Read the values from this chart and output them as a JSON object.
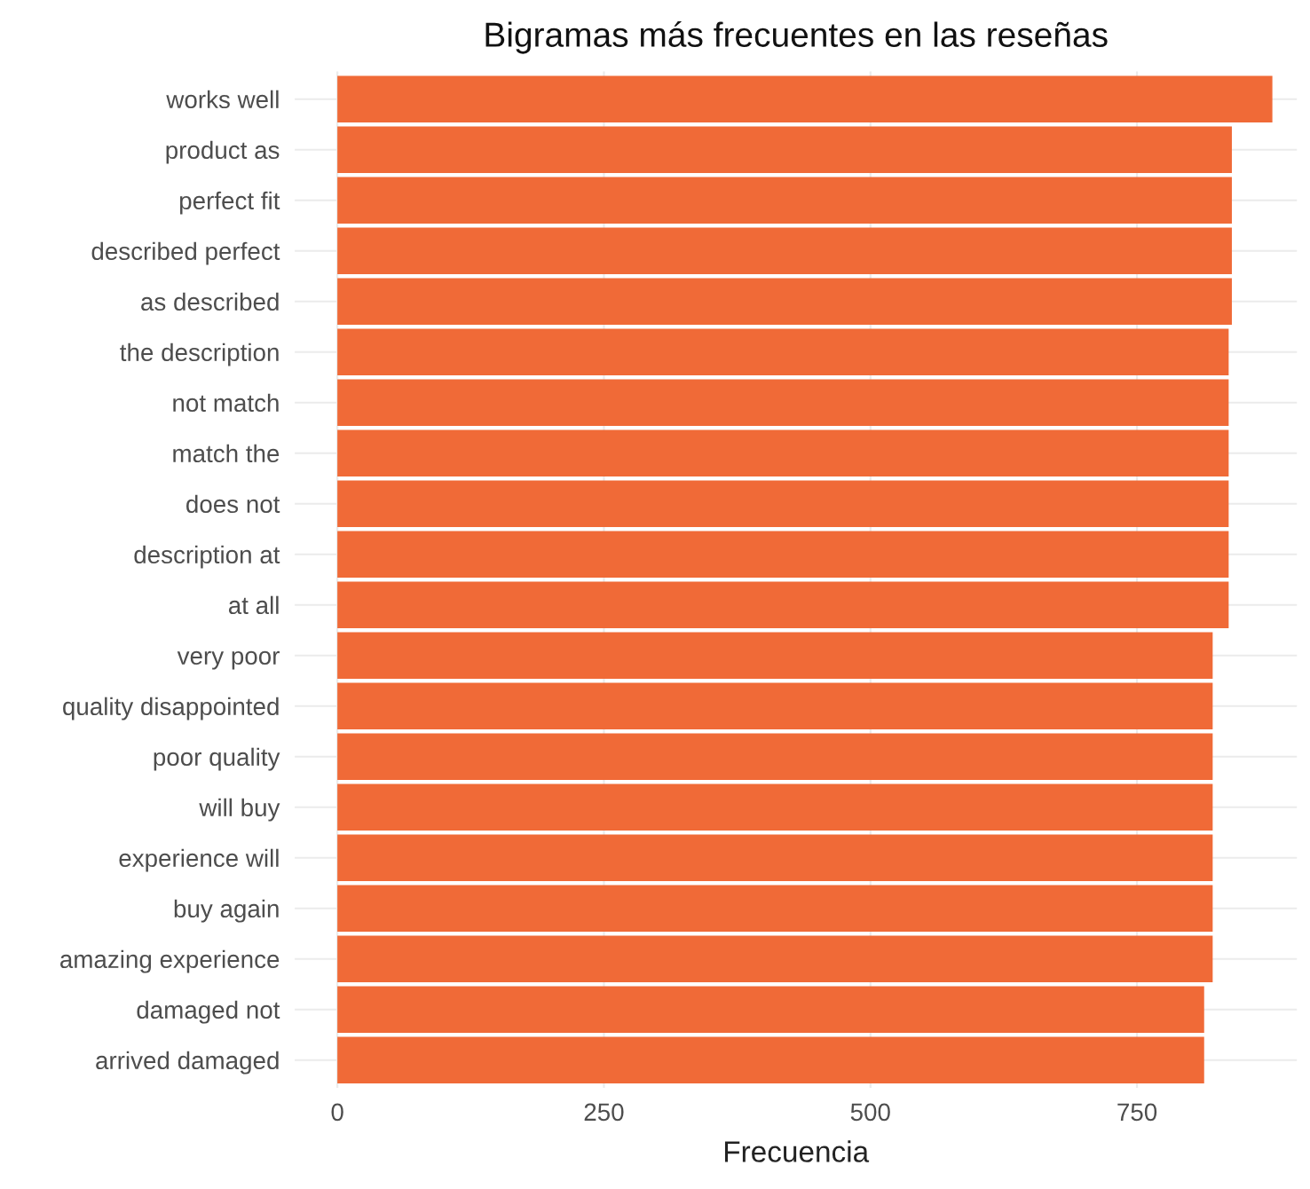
{
  "chart_data": {
    "type": "bar",
    "orientation": "horizontal",
    "title": "Bigramas más frecuentes en las reseñas",
    "xlabel": "Frecuencia",
    "categories": [
      "works well",
      "product as",
      "perfect fit",
      "described perfect",
      "as described",
      "the description",
      "not match",
      "match the",
      "does not",
      "description at",
      "at all",
      "very poor",
      "quality disappointed",
      "poor quality",
      "will buy",
      "experience will",
      "buy again",
      "amazing experience",
      "damaged not",
      "arrived damaged"
    ],
    "values": [
      877,
      839,
      839,
      839,
      839,
      836,
      836,
      836,
      836,
      836,
      836,
      821,
      821,
      821,
      821,
      821,
      821,
      821,
      813,
      813
    ],
    "color": "#f06a37",
    "xlim": [
      -40,
      900
    ],
    "xticks": [
      0,
      250,
      500,
      750
    ],
    "grid": true
  }
}
